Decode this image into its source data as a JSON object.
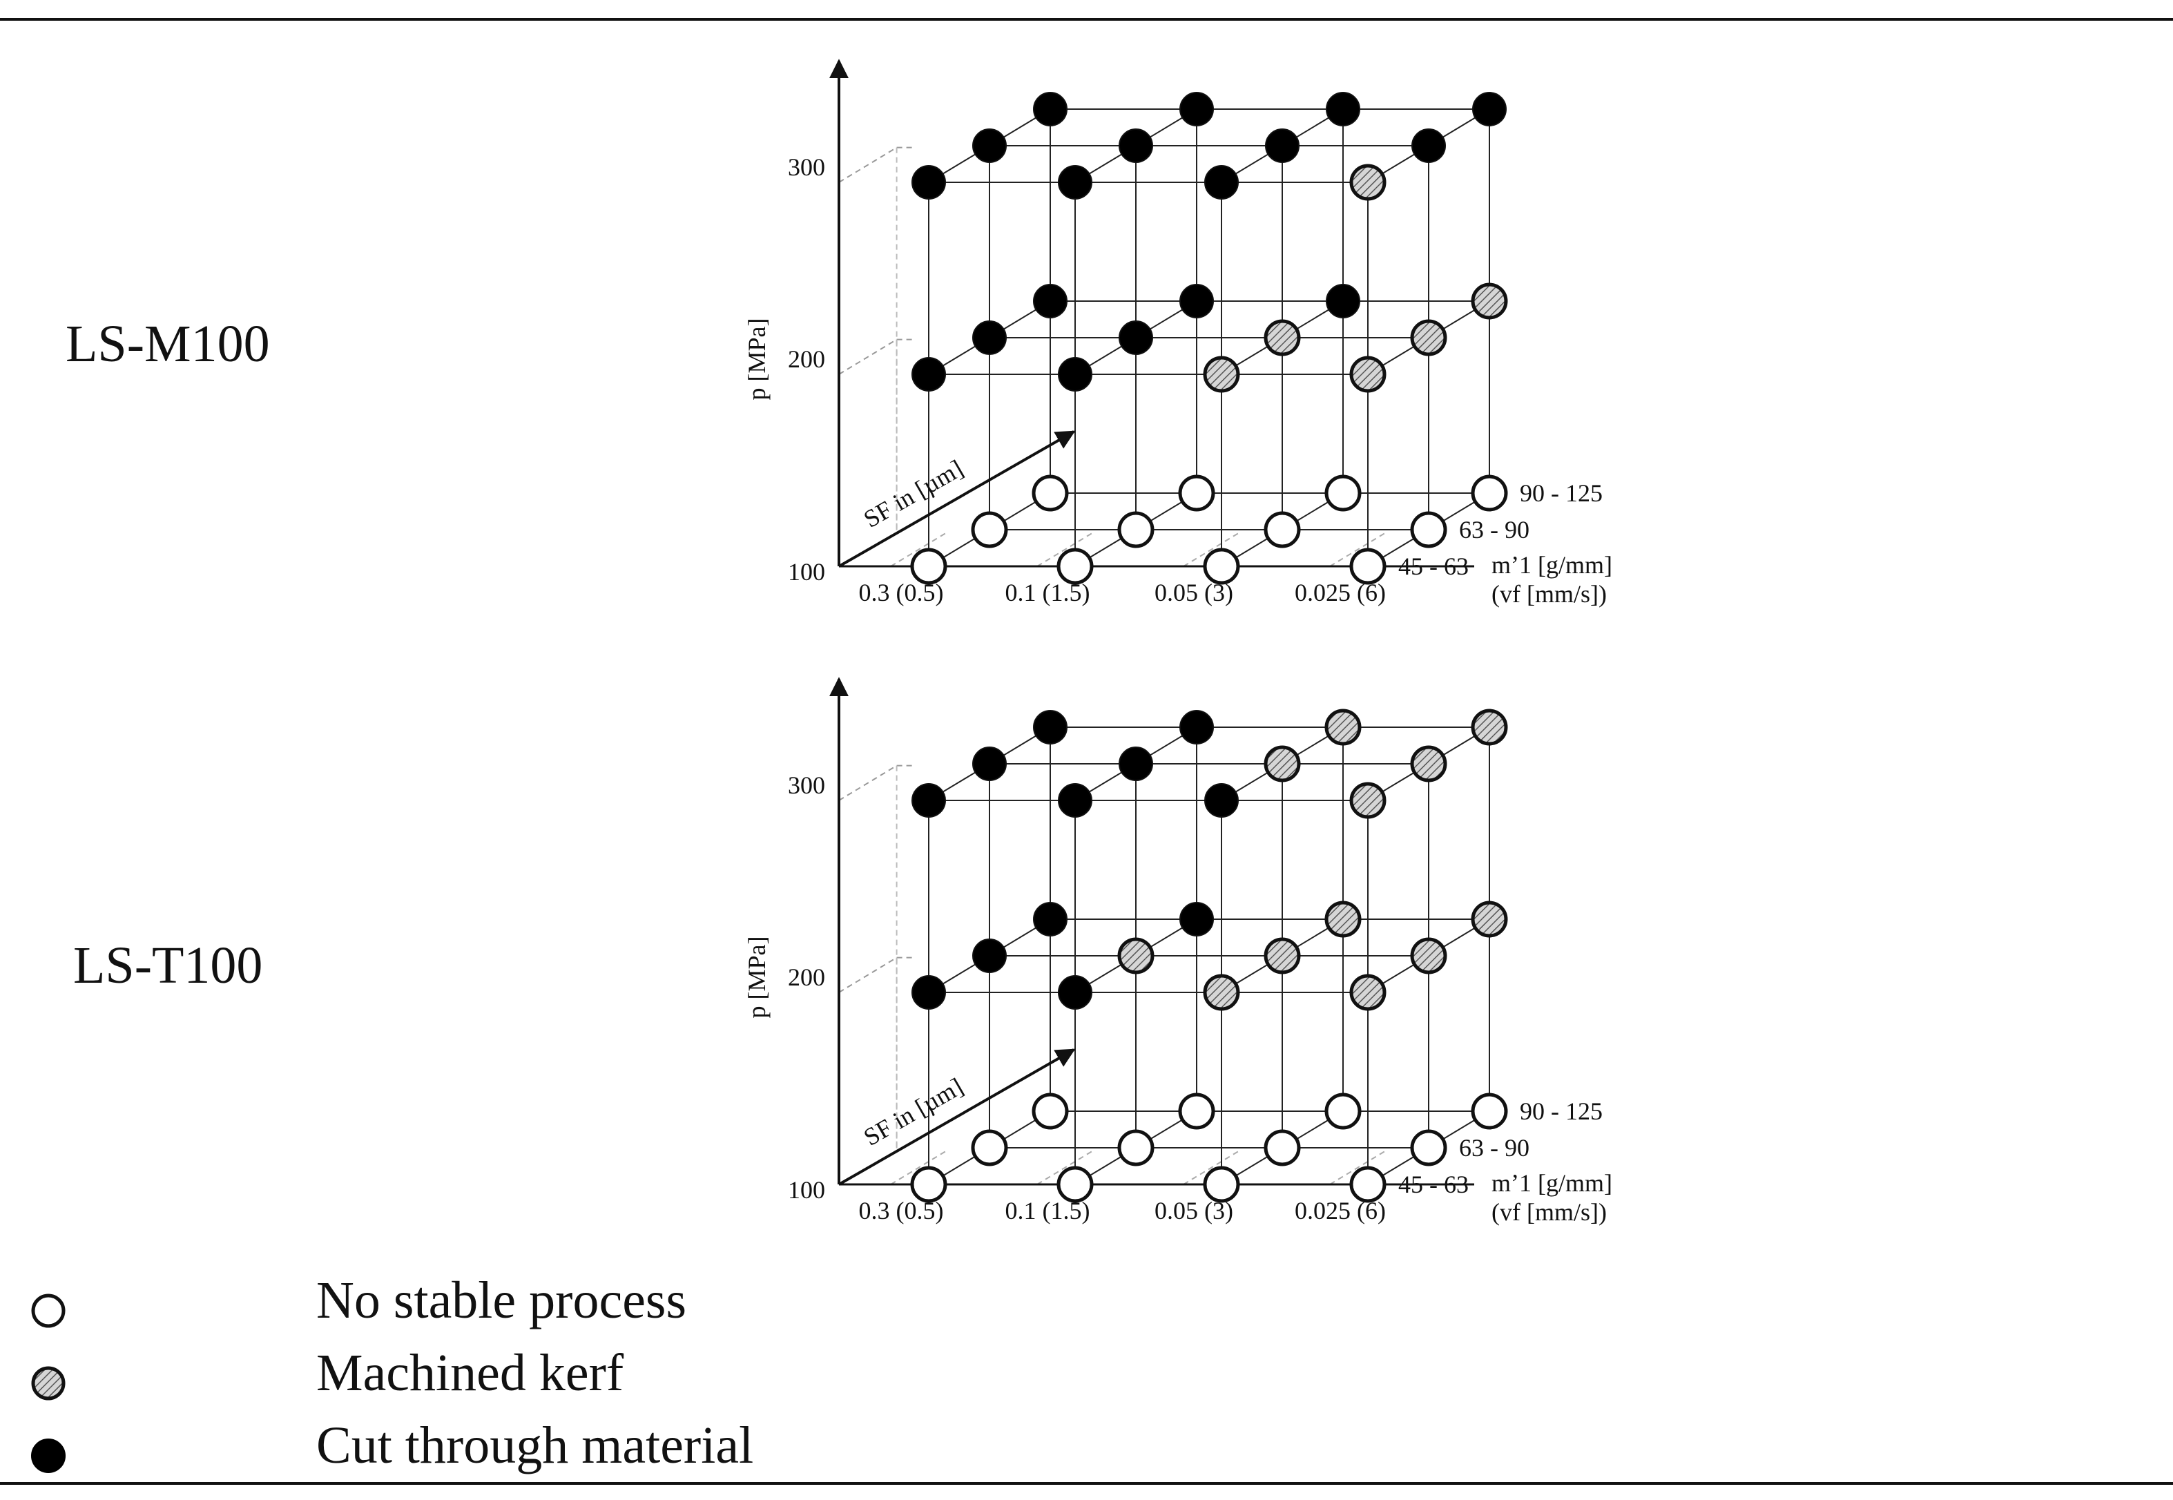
{
  "panels": [
    {
      "material": "LS-M100",
      "chart_data": {
        "type": "scatter-3d",
        "title": "LS-M100",
        "x_axis": {
          "label": "m'1 [g/mm] (vf [mm/s])",
          "label_line1": "mʼ1 [g/mm",
          "label_line2": "(vf [mm/s])",
          "ticks": [
            "0.3 (0.5)",
            "0.1 (1.5)",
            "0.05 (3)",
            "0.025 (6)"
          ]
        },
        "y_axis": {
          "label": "p [MPa]",
          "ticks": [
            "100",
            "200",
            "300"
          ],
          "levels": [
            100,
            200,
            300
          ]
        },
        "z_axis": {
          "label": "SF in [µm]",
          "ticks": [
            "45 - 63",
            "63 - 90",
            "90 - 125"
          ]
        },
        "states": [
          [
            [
              "none",
              "none",
              "none",
              "none"
            ],
            [
              "none",
              "none",
              "none",
              "none"
            ],
            [
              "none",
              "none",
              "none",
              "none"
            ]
          ],
          [
            [
              "cut",
              "cut",
              "kerf",
              "kerf"
            ],
            [
              "cut",
              "cut",
              "kerf",
              "kerf"
            ],
            [
              "cut",
              "cut",
              "cut",
              "kerf"
            ]
          ],
          [
            [
              "cut",
              "cut",
              "cut",
              "kerf"
            ],
            [
              "cut",
              "cut",
              "cut",
              "cut"
            ],
            [
              "cut",
              "cut",
              "cut",
              "cut"
            ]
          ]
        ]
      }
    },
    {
      "material": "LS-T100",
      "chart_data": {
        "type": "scatter-3d",
        "title": "LS-T100",
        "x_axis": {
          "label": "m'1 [g/mm] (vf [mm/s])",
          "label_line1": "mʼ1 [g/mm",
          "label_line2": "(vf [mm/s])",
          "ticks": [
            "0.3 (0.5)",
            "0.1 (1.5)",
            "0.05 (3)",
            "0.025 (6)"
          ]
        },
        "y_axis": {
          "label": "p [MPa]",
          "ticks": [
            "100",
            "200",
            "300"
          ],
          "levels": [
            100,
            200,
            300
          ]
        },
        "z_axis": {
          "label": "SF in [µm]",
          "ticks": [
            "45 - 63",
            "63 - 90",
            "90 - 125"
          ]
        },
        "states": [
          [
            [
              "none",
              "none",
              "none",
              "none"
            ],
            [
              "none",
              "none",
              "none",
              "none"
            ],
            [
              "none",
              "none",
              "none",
              "none"
            ]
          ],
          [
            [
              "cut",
              "cut",
              "kerf",
              "kerf"
            ],
            [
              "cut",
              "kerf",
              "kerf",
              "kerf"
            ],
            [
              "cut",
              "cut",
              "kerf",
              "kerf"
            ]
          ],
          [
            [
              "cut",
              "cut",
              "cut",
              "kerf"
            ],
            [
              "cut",
              "cut",
              "kerf",
              "kerf"
            ],
            [
              "cut",
              "cut",
              "kerf",
              "kerf"
            ]
          ]
        ]
      }
    }
  ],
  "legend": [
    {
      "state": "none",
      "label": "No stable process"
    },
    {
      "state": "kerf",
      "label": "Machined kerf"
    },
    {
      "state": "cut",
      "label": "Cut through material"
    }
  ],
  "colors": {
    "cut": "#000000",
    "kerf": "#bdbdbd",
    "none": "#ffffff",
    "line": "#222222"
  }
}
